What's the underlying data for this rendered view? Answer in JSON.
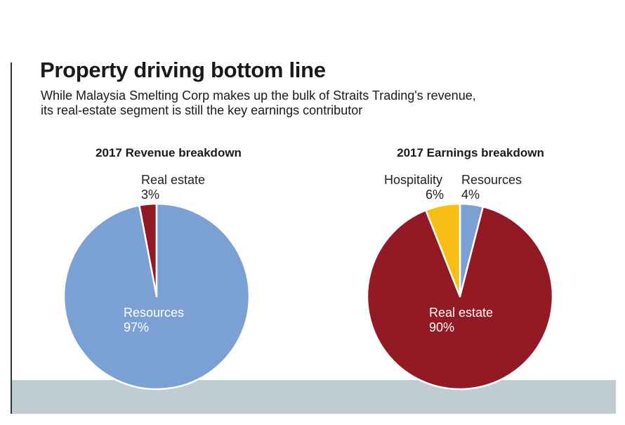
{
  "header": {
    "title": "Property driving bottom line",
    "subtitle_lines": [
      "While Malaysia Smelting Corp makes up the bulk of Straits Trading's revenue,",
      "its real-estate segment is still the key earnings contributor"
    ]
  },
  "colors": {
    "resources": "#7aa0d4",
    "real_estate": "#931a24",
    "hospitality": "#f7bf13",
    "footer_band": "#bfcdd2"
  },
  "chart_data": [
    {
      "type": "pie",
      "title": "2017 Revenue breakdown",
      "slices": [
        {
          "label": "Real estate",
          "value": 3,
          "value_label": "3%",
          "color": "#931a24"
        },
        {
          "label": "Resources",
          "value": 97,
          "value_label": "97%",
          "color": "#7aa0d4"
        }
      ]
    },
    {
      "type": "pie",
      "title": "2017 Earnings breakdown",
      "slices": [
        {
          "label": "Resources",
          "value": 4,
          "value_label": "4%",
          "color": "#7aa0d4"
        },
        {
          "label": "Real estate",
          "value": 90,
          "value_label": "90%",
          "color": "#931a24"
        },
        {
          "label": "Hospitality",
          "value": 6,
          "value_label": "6%",
          "color": "#f7bf13"
        }
      ]
    }
  ]
}
